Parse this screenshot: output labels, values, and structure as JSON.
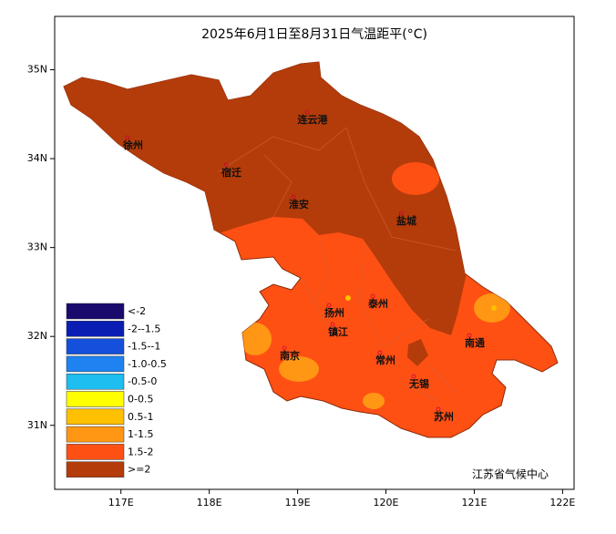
{
  "title": "2025年6月1日至8月31日气温距平(°C)",
  "xlim": [
    116.25,
    122.13
  ],
  "ylim": [
    30.28,
    35.6
  ],
  "xticks": [
    {
      "value": 117,
      "label": "117E"
    },
    {
      "value": 118,
      "label": "118E"
    },
    {
      "value": 119,
      "label": "119E"
    },
    {
      "value": 120,
      "label": "120E"
    },
    {
      "value": 121,
      "label": "121E"
    },
    {
      "value": 122,
      "label": "122E"
    }
  ],
  "yticks": [
    {
      "value": 31,
      "label": "31N"
    },
    {
      "value": 32,
      "label": "32N"
    },
    {
      "value": 33,
      "label": "33N"
    },
    {
      "value": 34,
      "label": "34N"
    },
    {
      "value": 35,
      "label": "35N"
    }
  ],
  "legend": [
    {
      "label": "<-2",
      "color": "#1a0a6e"
    },
    {
      "label": "-2--1.5",
      "color": "#0a1eb4"
    },
    {
      "label": "-1.5--1",
      "color": "#1450dc"
    },
    {
      "label": "-1.0-0.5",
      "color": "#1e82f0"
    },
    {
      "label": "-0.5-0",
      "color": "#1ebef0"
    },
    {
      "label": "0-0.5",
      "color": "#ffff00"
    },
    {
      "label": "0.5-1",
      "color": "#ffc000"
    },
    {
      "label": "1-1.5",
      "color": "#ff9614"
    },
    {
      "label": "1.5-2",
      "color": "#ff5014"
    },
    {
      "label": ">=2",
      "color": "#b43c0a"
    }
  ],
  "cities": [
    "徐州",
    "连云港",
    "宿迁",
    "淮安",
    "盐城",
    "扬州",
    "泰州",
    "镇江",
    "南京",
    "常州",
    "南通",
    "无锡",
    "苏州"
  ],
  "credit": "江苏省气候中心"
}
